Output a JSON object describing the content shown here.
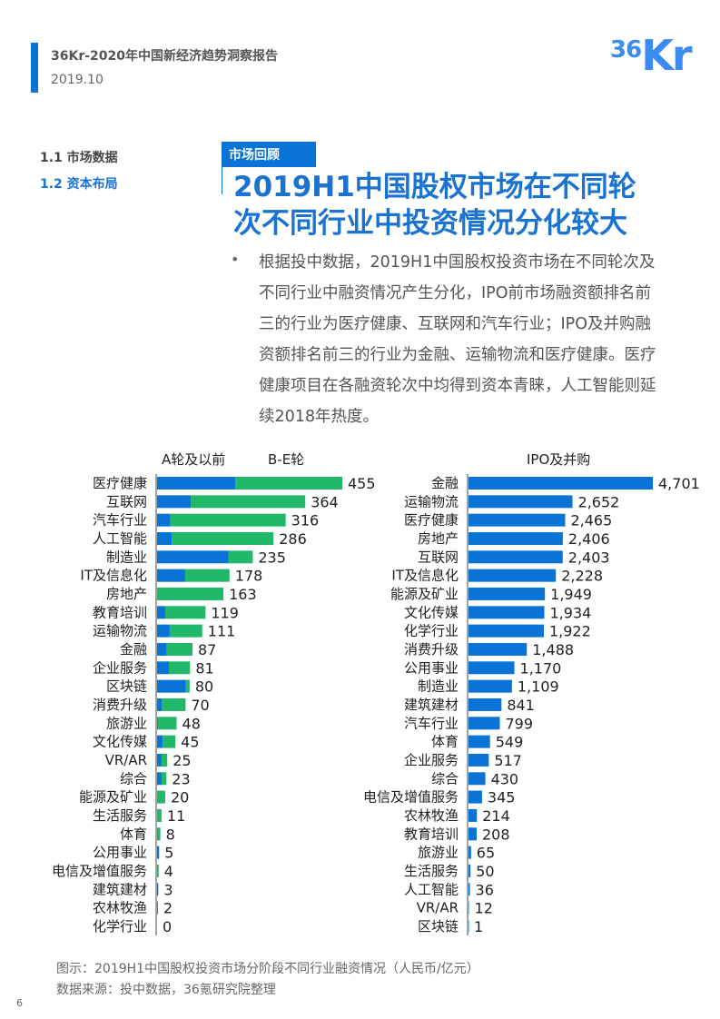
{
  "header": {
    "report_title": "36Kr-2020年中国新经济趋势洞察报告",
    "date": "2019.10",
    "logo_text_small": "36",
    "logo_text_large": "Kr"
  },
  "nav": {
    "items": [
      {
        "label": "1.1 市场数据"
      },
      {
        "label": "1.2 资本布局"
      }
    ]
  },
  "section_tag": "市场回顾",
  "headline": "2019H1中国股权市场在不同轮次不同行业中投资情况分化较大",
  "bullet_symbol": "•",
  "body_text": "根据投中数据，2019H1中国股权投资市场在不同轮次及不同行业中融资情况产生分化，IPO前市场融资额排名前三的行业为医疗健康、互联网和汽车行业；IPO及并购融资额排名前三的行业为金融、运输物流和医疗健康。医疗健康项目在各融资轮次中均得到资本青睐，人工智能则延续2018年热度。",
  "caption": "图示：2019H1中国股权投资市场分阶段不同行业融资情况（人民币/亿元）",
  "source": "数据来源：投中数据，36氪研究院整理",
  "page_number": "6",
  "colors": {
    "brand_blue": "#0a74d6",
    "series_blue": "#0a74d6",
    "series_green": "#21b86a",
    "title_blue": "#1a73d0"
  },
  "chart_data": [
    {
      "type": "bar",
      "orientation": "horizontal",
      "stacked": true,
      "categories": [
        "医疗健康",
        "互联网",
        "汽车行业",
        "人工智能",
        "制造业",
        "IT及信息化",
        "房地产",
        "教育培训",
        "运输物流",
        "金融",
        "企业服务",
        "区块链",
        "消费升级",
        "旅游业",
        "文化传媒",
        "VR/AR",
        "综合",
        "能源及矿业",
        "生活服务",
        "体育",
        "公用事业",
        "电信及增值服务",
        "建筑建材",
        "农林牧渔",
        "化学行业"
      ],
      "totals": [
        455,
        364,
        316,
        286,
        235,
        178,
        163,
        119,
        111,
        87,
        81,
        80,
        70,
        48,
        45,
        25,
        23,
        20,
        11,
        8,
        5,
        4,
        3,
        2,
        0
      ],
      "series": [
        {
          "name": "A轮及以前",
          "values": [
            192,
            83,
            33,
            36,
            176,
            69,
            0,
            20,
            31,
            24,
            29,
            71,
            12,
            2,
            14,
            11,
            11,
            0,
            0,
            1,
            5,
            0,
            3,
            2,
            0
          ]
        },
        {
          "name": "B-E轮",
          "values": [
            263,
            281,
            283,
            250,
            59,
            109,
            163,
            99,
            80,
            63,
            52,
            9,
            58,
            46,
            31,
            14,
            12,
            20,
            11,
            7,
            0,
            4,
            0,
            0,
            0
          ]
        }
      ],
      "legend": "top"
    },
    {
      "type": "bar",
      "orientation": "horizontal",
      "categories": [
        "金融",
        "运输物流",
        "医疗健康",
        "房地产",
        "互联网",
        "IT及信息化",
        "能源及矿业",
        "文化传媒",
        "化学行业",
        "消费升级",
        "公用事业",
        "制造业",
        "建筑建材",
        "汽车行业",
        "体育",
        "企业服务",
        "综合",
        "电信及增值服务",
        "农林牧渔",
        "教育培训",
        "旅游业",
        "生活服务",
        "人工智能",
        "VR/AR",
        "区块链"
      ],
      "values": [
        4701,
        2652,
        2465,
        2406,
        2403,
        2228,
        1949,
        1934,
        1922,
        1488,
        1170,
        1109,
        841,
        799,
        549,
        517,
        430,
        345,
        214,
        208,
        65,
        50,
        36,
        12,
        1
      ],
      "labels": [
        "4,701",
        "2,652",
        "2,465",
        "2,406",
        "2,403",
        "2,228",
        "1,949",
        "1,934",
        "1,922",
        "1,488",
        "1,170",
        "1,109",
        "841",
        "799",
        "549",
        "517",
        "430",
        "345",
        "214",
        "208",
        "65",
        "50",
        "36",
        "12",
        "1"
      ],
      "series_name": "IPO及并购",
      "legend": "top"
    }
  ]
}
